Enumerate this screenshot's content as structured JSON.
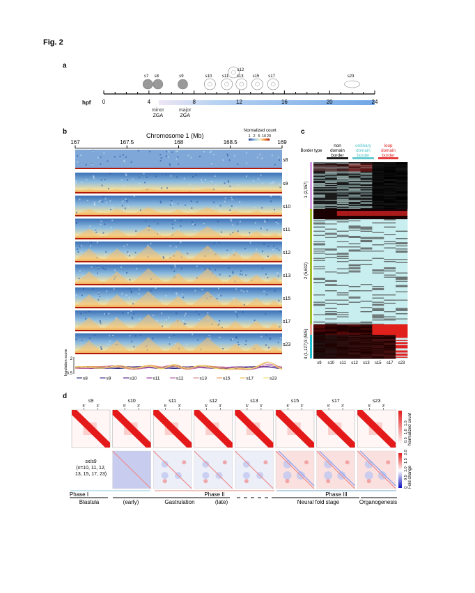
{
  "figure_title": "Fig. 2",
  "panel_a": {
    "label": "a",
    "axis_label": "hpf",
    "ticks": [
      "0",
      "4",
      "8",
      "12",
      "16",
      "20",
      "24"
    ],
    "stages": [
      {
        "name": "s7",
        "hpf": 3.9
      },
      {
        "name": "s8",
        "hpf": 4.8
      },
      {
        "name": "s9",
        "hpf": 7.0
      },
      {
        "name": "s10",
        "hpf": 9.4
      },
      {
        "name": "s11",
        "hpf": 10.9
      },
      {
        "name": "s12",
        "hpf": 11.5
      },
      {
        "name": "s13",
        "hpf": 12.2
      },
      {
        "name": "s15",
        "hpf": 13.6
      },
      {
        "name": "s17",
        "hpf": 15.0
      },
      {
        "name": "s23",
        "hpf": 22.0
      }
    ],
    "zga_labels": [
      {
        "top": "minor",
        "bottom": "ZGA",
        "hpf": 4.8
      },
      {
        "top": "major",
        "bottom": "ZGA",
        "hpf": 7.2
      }
    ],
    "gradient_colors": [
      "#f0e6f5",
      "#6fa6e6"
    ]
  },
  "panel_b": {
    "label": "b",
    "title": "Chromosome 1 (Mb)",
    "ticks": [
      "167",
      "167.5",
      "168",
      "168.5",
      "169"
    ],
    "colorbar_title": "Normalized count",
    "colorbar_ticks": [
      "1",
      "2",
      "5",
      "10",
      "20"
    ],
    "tracks": [
      "s8",
      "s9",
      "s10",
      "s11",
      "s12",
      "s13",
      "s15",
      "s17",
      "s23"
    ],
    "insulation_ylabel": "Insulation score",
    "insulation_ticks": [
      "0.5",
      "2"
    ],
    "legend": [
      {
        "name": "s8",
        "color": "#2b2f7a"
      },
      {
        "name": "s9",
        "color": "#3d2f8a"
      },
      {
        "name": "s10",
        "color": "#5b2b8f"
      },
      {
        "name": "s11",
        "color": "#8e3a9a"
      },
      {
        "name": "s12",
        "color": "#b860a8"
      },
      {
        "name": "s13",
        "color": "#d98b8b"
      },
      {
        "name": "s15",
        "color": "#e89b5c"
      },
      {
        "name": "s17",
        "color": "#f0c060"
      },
      {
        "name": "s23",
        "color": "#f3e27a"
      }
    ]
  },
  "panel_c": {
    "label": "c",
    "row_header": "Border type",
    "groups": [
      {
        "label": "non domain border",
        "color": "#000000"
      },
      {
        "label": "ordinary domain border",
        "color": "#4fc3c8"
      },
      {
        "label": "loop domain border",
        "color": "#e02020"
      }
    ],
    "border_types": [
      {
        "label": "1 (2,357)",
        "color": "#d79be6"
      },
      {
        "label": "2 (5,602)",
        "color": "#9fbf2a"
      },
      {
        "label": "3 (505)",
        "color": "#f0a090"
      },
      {
        "label": "4 (1,127)",
        "color": "#20c0d0"
      }
    ],
    "columns": [
      "s9",
      "s10",
      "s11",
      "s12",
      "s13",
      "s15",
      "s17",
      "s23"
    ]
  },
  "panel_d": {
    "label": "d",
    "columns": [
      "s9",
      "s10",
      "s11",
      "s12",
      "s13",
      "s15",
      "s17",
      "s23"
    ],
    "end_labels": [
      "5'",
      "3'"
    ],
    "row2_label": [
      "sx/s9",
      "(x=10, 11, 12,",
      "13, 15, 17, 23)"
    ],
    "colorbar1": {
      "title": "Normalized count",
      "ticks": [
        "0.5",
        "1.0",
        "1.5"
      ]
    },
    "colorbar2": {
      "title": "Fold change",
      "ticks": [
        "0",
        "0.5",
        "1.0",
        "1.5",
        "2.0"
      ]
    },
    "phases": [
      {
        "label": "Phase I",
        "color": "#5ab8d0"
      },
      {
        "label": "Phase II",
        "color": "#d06050"
      },
      {
        "label": "Phase III",
        "color": "#4a80b0"
      }
    ],
    "stages": [
      "Blastula",
      "(early)",
      "Gastrulation",
      "(late)",
      "Neural fold stage",
      "Organogenesis"
    ]
  }
}
